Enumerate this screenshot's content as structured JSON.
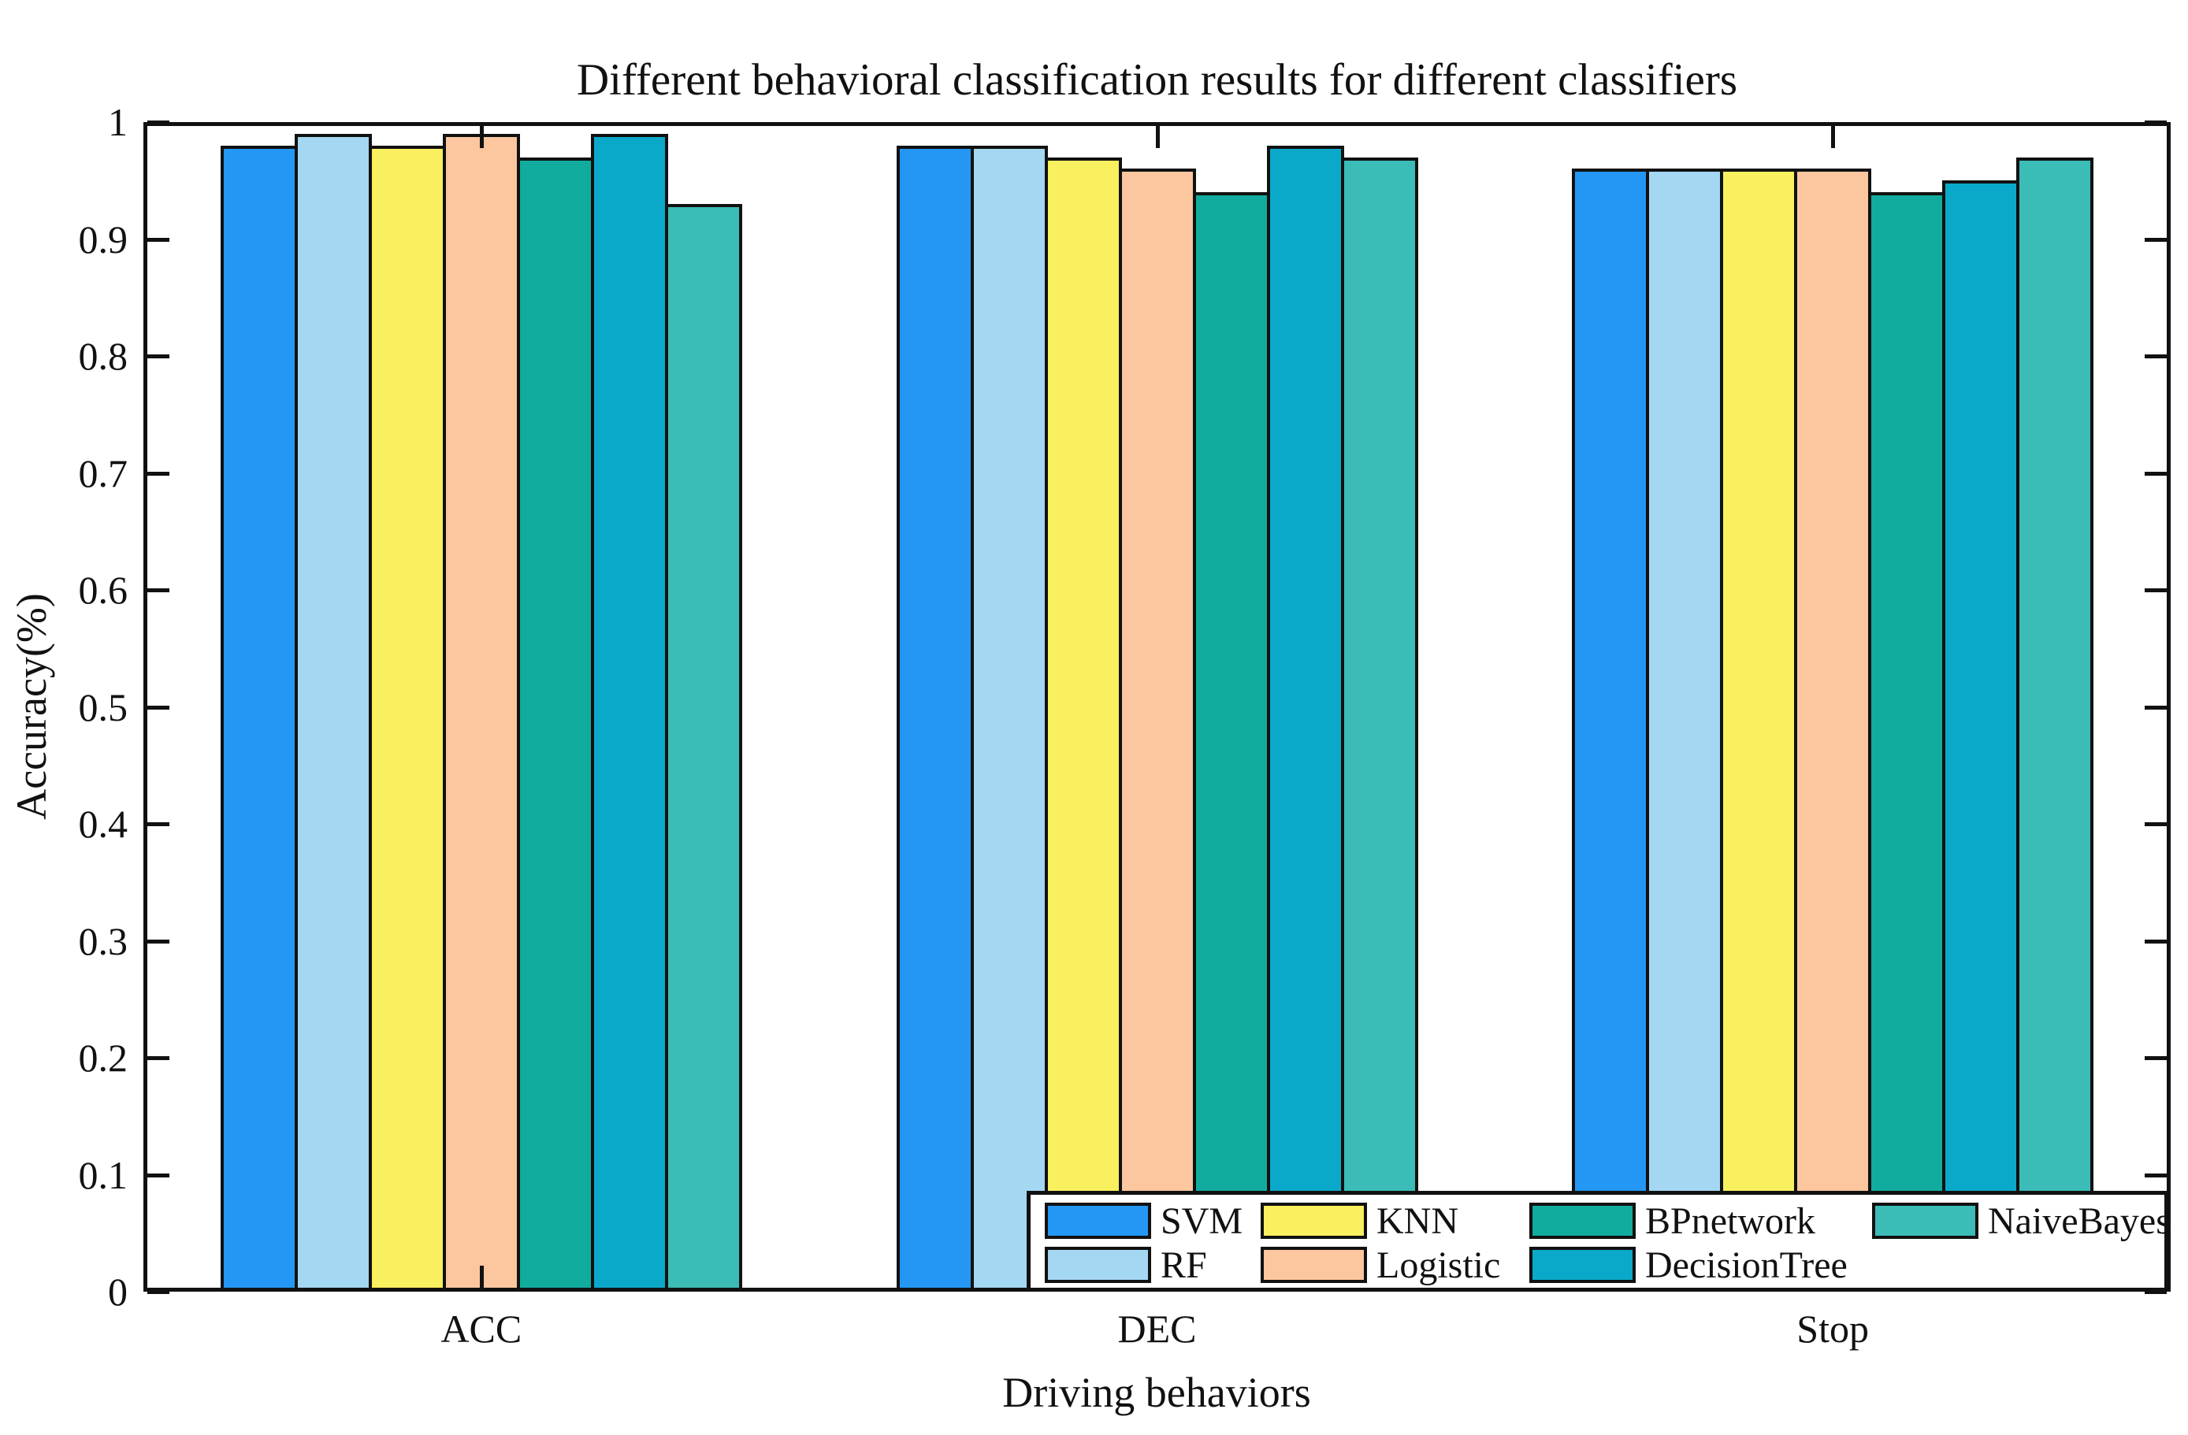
{
  "chart_data": {
    "type": "bar",
    "title": "Different behavioral classification results for different classifiers",
    "xlabel": "Driving behaviors",
    "ylabel": "Accuracy(%)",
    "categories": [
      "ACC",
      "DEC",
      "Stop"
    ],
    "series": [
      {
        "name": "SVM",
        "color": "#2397F3",
        "values": [
          0.98,
          0.98,
          0.96
        ]
      },
      {
        "name": "RF",
        "color": "#A4D7F2",
        "values": [
          0.99,
          0.98,
          0.96
        ]
      },
      {
        "name": "KNN",
        "color": "#F8F05F",
        "values": [
          0.98,
          0.97,
          0.96
        ]
      },
      {
        "name": "Logistic",
        "color": "#FCC69E",
        "values": [
          0.99,
          0.96,
          0.96
        ]
      },
      {
        "name": "BPnetwork",
        "color": "#11AC9E",
        "values": [
          0.97,
          0.94,
          0.94
        ]
      },
      {
        "name": "DecisionTree",
        "color": "#0AA9CA",
        "values": [
          0.99,
          0.98,
          0.95
        ]
      },
      {
        "name": "NaiveBayes",
        "color": "#3BBCB6",
        "values": [
          0.93,
          0.97,
          0.97
        ]
      }
    ],
    "ylim": [
      0,
      1
    ],
    "yticks": [
      0,
      0.1,
      0.2,
      0.3,
      0.4,
      0.5,
      0.6,
      0.7,
      0.8,
      0.9,
      1
    ],
    "ytick_labels": [
      "0",
      "0.1",
      "0.2",
      "0.3",
      "0.4",
      "0.5",
      "0.6",
      "0.7",
      "0.8",
      "0.9",
      "1"
    ],
    "grid": false,
    "bar_edge_color": "#111111",
    "axis_color": "#111111",
    "legend": {
      "position": "inside-bottom-right",
      "columns": [
        [
          "SVM",
          "RF"
        ],
        [
          "KNN",
          "Logistic"
        ],
        [
          "BPnetwork",
          "DecisionTree"
        ],
        [
          "NaiveBayes"
        ]
      ]
    }
  }
}
